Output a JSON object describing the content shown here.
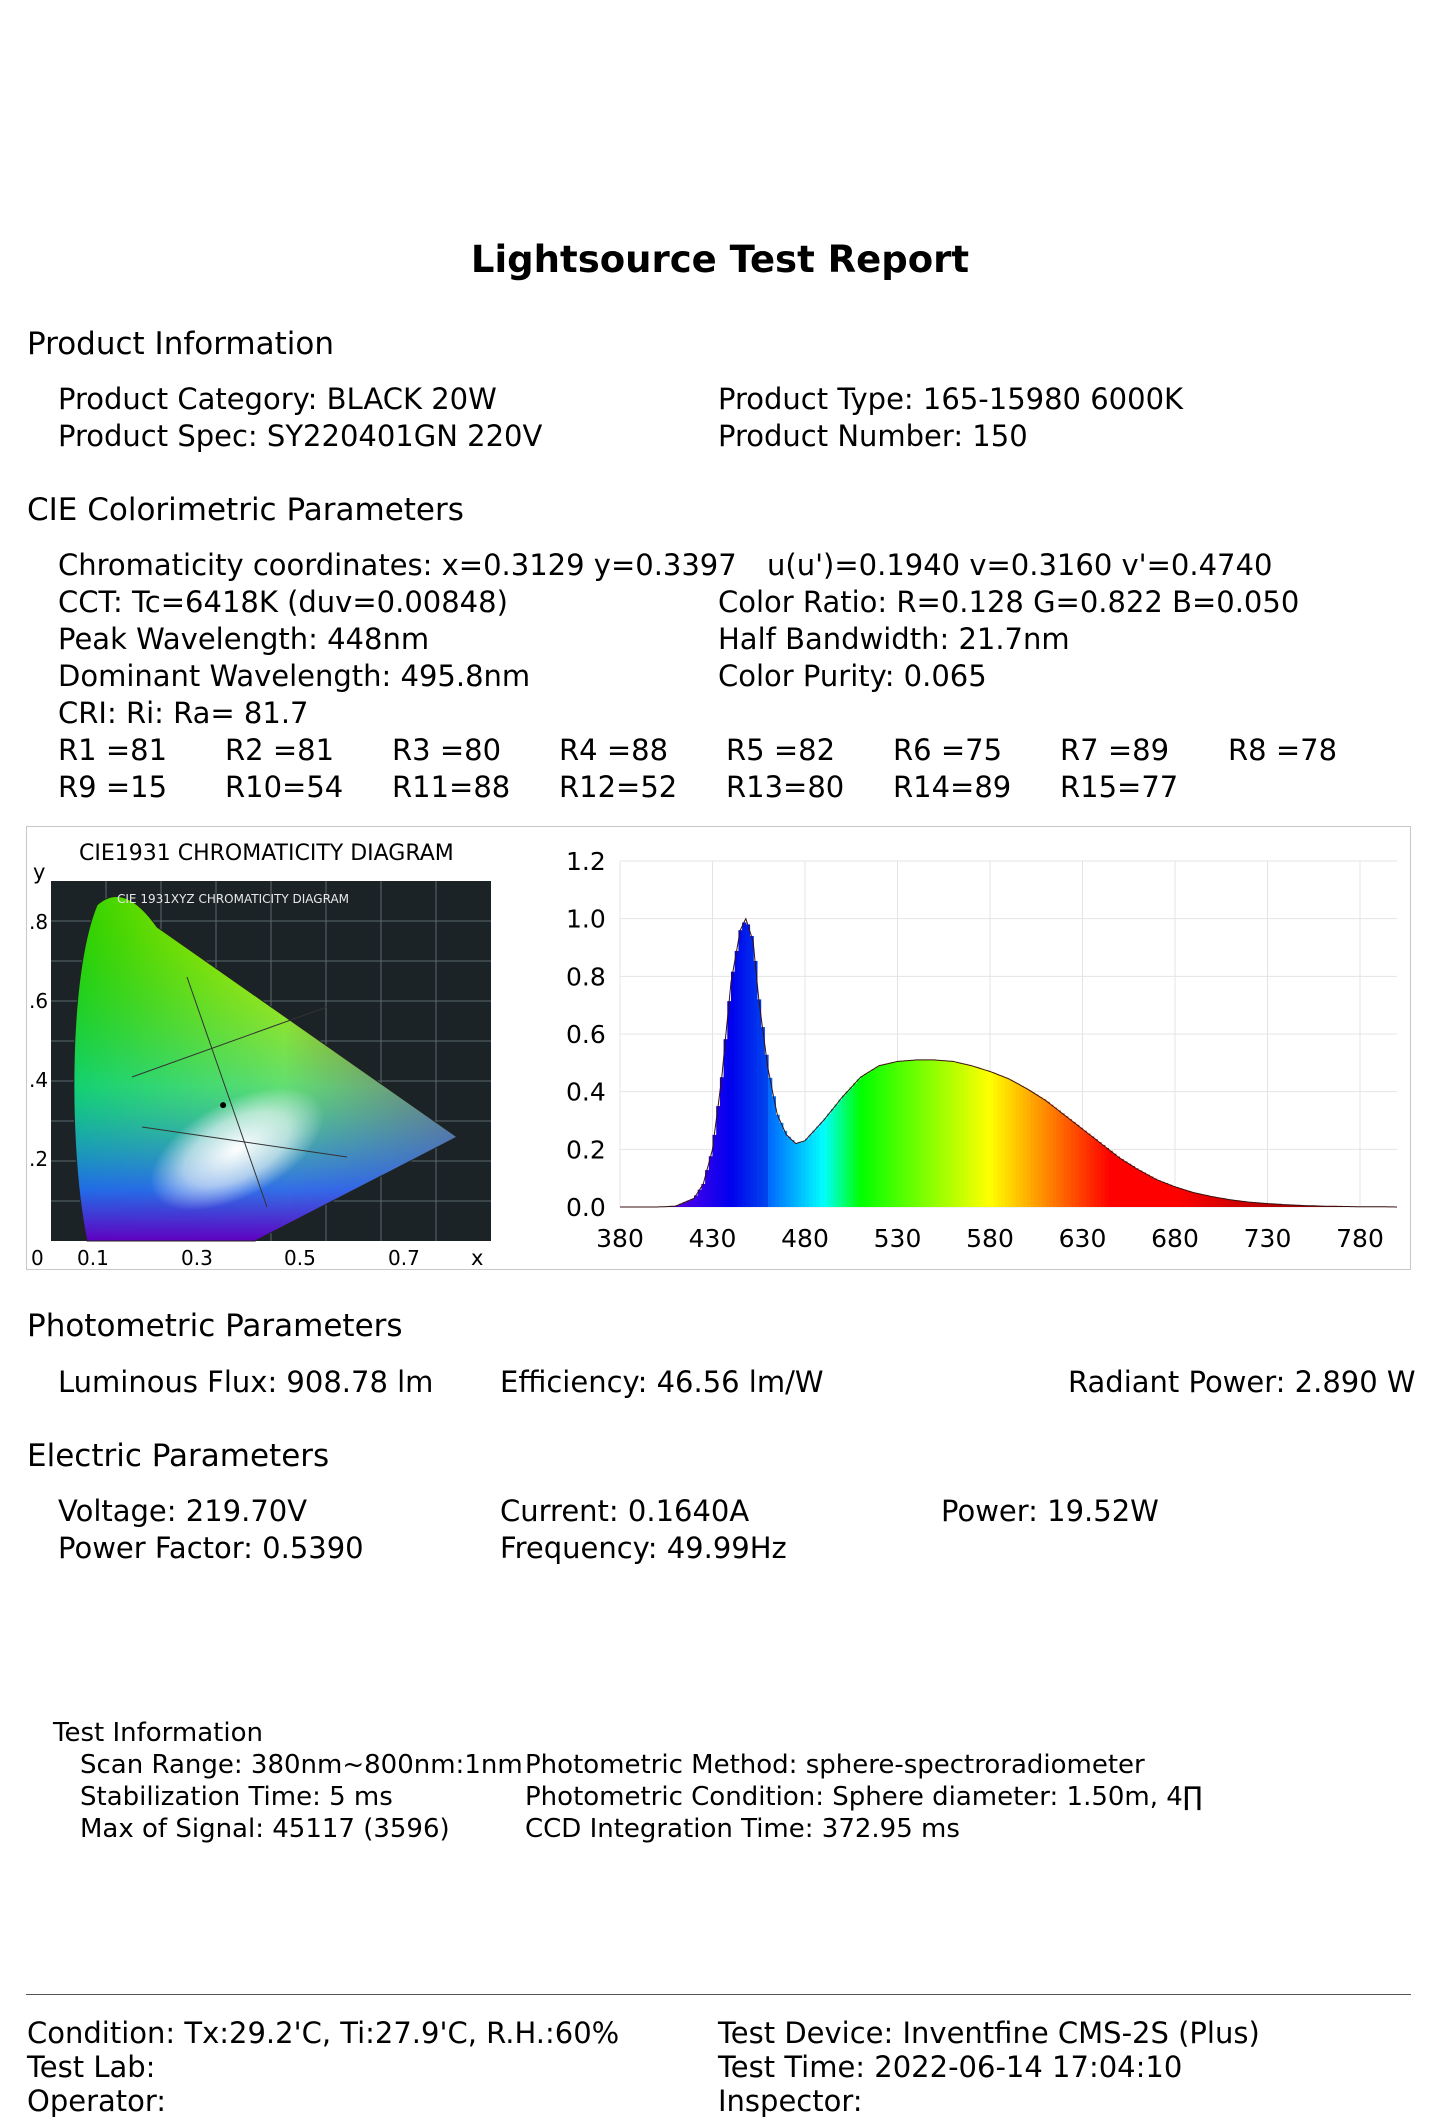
{
  "report": {
    "title": "Lightsource Test Report"
  },
  "product": {
    "heading": "Product Information",
    "category": "Product Category: BLACK 20W",
    "type": "Product Type: 165-15980 6000K",
    "spec": "Product Spec: SY220401GN 220V",
    "number": "Product Number: 150"
  },
  "cie": {
    "heading": "CIE Colorimetric Parameters",
    "chromaticity": "Chromaticity coordinates: x=0.3129 y=0.3397",
    "uv": "u(u')=0.1940 v=0.3160 v'=0.4740",
    "cct": "CCT: Tc=6418K (duv=0.00848)",
    "color_ratio": "Color Ratio: R=0.128  G=0.822  B=0.050",
    "peak": "Peak Wavelength: 448nm",
    "half_bandwidth": "Half Bandwidth: 21.7nm",
    "dominant": "Dominant Wavelength: 495.8nm",
    "purity": "Color Purity: 0.065",
    "cri": "CRI: Ri: Ra= 81.7",
    "r_row1": [
      "R1 =81",
      "R2 =81",
      "R3 =80",
      "R4 =88",
      "R5 =82",
      "R6 =75",
      "R7 =89",
      "R8 =78"
    ],
    "r_row2": [
      "R9 =15",
      "R10=54",
      "R11=88",
      "R12=52",
      "R13=80",
      "R14=89",
      "R15=77"
    ]
  },
  "cie_diagram": {
    "title": "CIE1931 CHROMATICITY DIAGRAM",
    "inner_title": "CIE 1931XYZ CHROMATICITY DIAGRAM",
    "y_label": "y",
    "x_label": "x",
    "y_ticks": [
      ".8",
      ".6",
      ".4",
      ".2"
    ],
    "x_ticks": [
      "0",
      "0.1",
      "0.3",
      "0.5",
      "0.7"
    ],
    "point": {
      "x": 0.3129,
      "y": 0.3397
    }
  },
  "chart_data": {
    "type": "area",
    "title": "",
    "xlabel": "",
    "ylabel": "",
    "xlim": [
      380,
      800
    ],
    "ylim": [
      0,
      1.2
    ],
    "x_ticks": [
      "380",
      "430",
      "480",
      "530",
      "580",
      "630",
      "680",
      "730",
      "780"
    ],
    "y_ticks": [
      "0.0",
      "0.2",
      "0.4",
      "0.6",
      "0.8",
      "1.0",
      "1.2"
    ],
    "grid": true,
    "fill": "wavelength spectrum colors",
    "x": [
      380,
      400,
      410,
      420,
      425,
      430,
      435,
      440,
      445,
      448,
      452,
      455,
      460,
      465,
      470,
      475,
      480,
      490,
      500,
      510,
      520,
      530,
      540,
      550,
      560,
      570,
      580,
      590,
      600,
      610,
      620,
      630,
      640,
      650,
      660,
      670,
      680,
      690,
      700,
      710,
      720,
      730,
      740,
      750,
      760,
      770,
      780,
      790,
      800
    ],
    "values": [
      0.0,
      0.0,
      0.003,
      0.03,
      0.08,
      0.2,
      0.45,
      0.78,
      0.96,
      1.0,
      0.92,
      0.72,
      0.48,
      0.32,
      0.25,
      0.22,
      0.23,
      0.3,
      0.38,
      0.45,
      0.49,
      0.505,
      0.51,
      0.51,
      0.505,
      0.49,
      0.47,
      0.445,
      0.41,
      0.37,
      0.32,
      0.27,
      0.22,
      0.17,
      0.13,
      0.095,
      0.07,
      0.05,
      0.036,
      0.025,
      0.017,
      0.012,
      0.008,
      0.005,
      0.003,
      0.002,
      0.001,
      0.001,
      0.0
    ]
  },
  "photometric": {
    "heading": "Photometric Parameters",
    "flux": "Luminous Flux: 908.78 lm",
    "efficiency": "Efficiency: 46.56 lm/W",
    "radiant": "Radiant Power: 2.890 W"
  },
  "electric": {
    "heading": "Electric Parameters",
    "voltage": "Voltage: 219.70V",
    "current": "Current: 0.1640A",
    "power": "Power: 19.52W",
    "power_factor": "Power Factor: 0.5390",
    "frequency": "Frequency: 49.99Hz"
  },
  "test_info": {
    "heading": "Test Information",
    "scan_range": "Scan Range: 380nm~800nm:1nm",
    "stabilization": "Stabilization Time: 5 ms",
    "max_signal": "Max of Signal: 45117 (3596)",
    "method": "Photometric Method: sphere-spectroradiometer",
    "condition": "Photometric Condition: Sphere diameter: 1.50m, 4∏",
    "ccd": "CCD Integration Time: 372.95 ms"
  },
  "footer": {
    "condition": "Condition: Tx:29.2'C, Ti:27.9'C, R.H.:60%",
    "device": "Test Device: Inventfine CMS-2S (Plus)",
    "lab": "Test Lab:",
    "time": "Test Time: 2022-06-14 17:04:10",
    "operator": "Operator:",
    "inspector": "Inspector:"
  }
}
